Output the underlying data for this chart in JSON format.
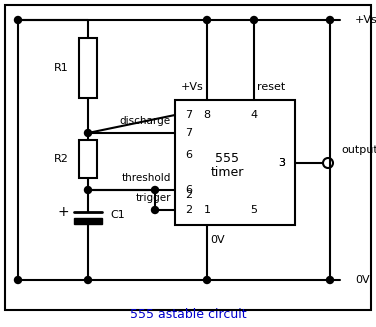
{
  "title": "555 astable circuit",
  "title_color": "#0000cc",
  "bg_color": "#ffffff",
  "line_color": "#000000",
  "figsize": [
    3.76,
    3.27
  ],
  "dpi": 100,
  "labels": {
    "Vs_top": "+Vs",
    "Vs_pin8": "+Vs",
    "reset": "reset",
    "output": "output",
    "OV_box": "0V",
    "OV_rail": "0V",
    "timer_line1": "555",
    "timer_line2": "timer",
    "discharge": "discharge",
    "threshold": "threshold",
    "trigger": "trigger",
    "R1": "R1",
    "R2": "R2",
    "C1": "C1",
    "plus": "+",
    "pin7": "7",
    "pin8": "8",
    "pin4": "4",
    "pin3": "3",
    "pin6": "6",
    "pin2": "2",
    "pin1": "1",
    "pin5": "5"
  }
}
